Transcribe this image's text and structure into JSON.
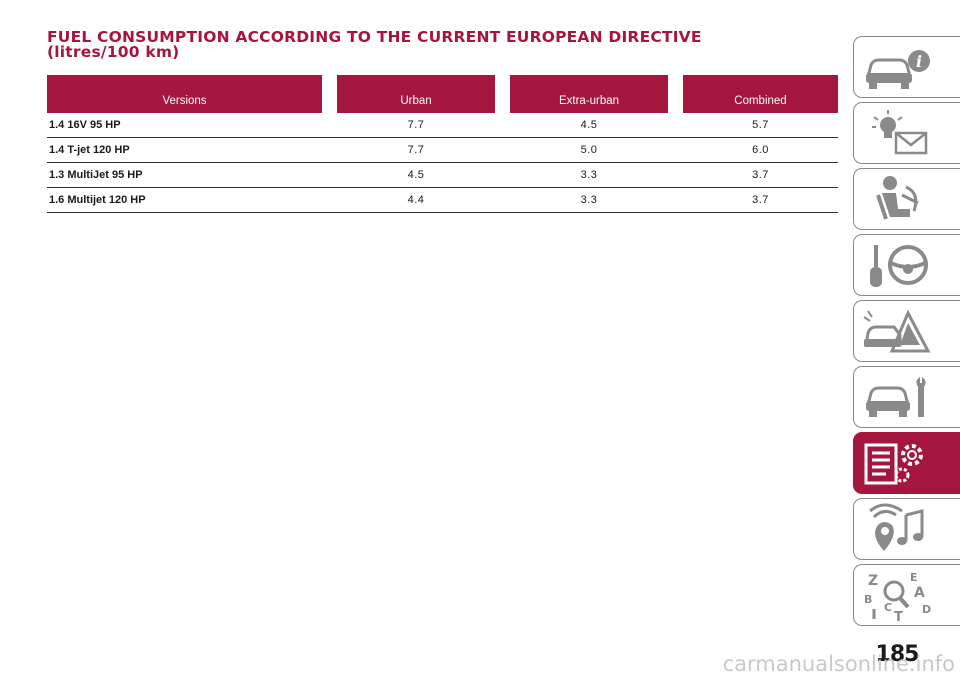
{
  "title": {
    "line1": "FUEL CONSUMPTION ACCORDING TO THE CURRENT EUROPEAN DIRECTIVE",
    "line2": "(litres/100 km)"
  },
  "table": {
    "headers": [
      "Versions",
      "Urban",
      "Extra-urban",
      "Combined"
    ],
    "rows": [
      {
        "version": "1.4 16V 95 HP",
        "urban": "7.7",
        "extra_urban": "4.5",
        "combined": "5.7"
      },
      {
        "version": "1.4 T-jet 120 HP",
        "urban": "7.7",
        "extra_urban": "5.0",
        "combined": "6.0"
      },
      {
        "version": "1.3 MultiJet 95 HP",
        "urban": "4.5",
        "extra_urban": "3.3",
        "combined": "3.7"
      },
      {
        "version": "1.6 Multijet 120 HP",
        "urban": "4.4",
        "extra_urban": "3.3",
        "combined": "3.7"
      }
    ]
  },
  "sidebar": {
    "tabs": [
      {
        "icon": "car-info-icon",
        "active": false
      },
      {
        "icon": "warning-lights-message-icon",
        "active": false
      },
      {
        "icon": "seat-airbag-icon",
        "active": false
      },
      {
        "icon": "key-steering-wheel-icon",
        "active": false
      },
      {
        "icon": "emergency-breakdown-icon",
        "active": false
      },
      {
        "icon": "car-maintenance-icon",
        "active": false
      },
      {
        "icon": "technical-data-icon",
        "active": true
      },
      {
        "icon": "multimedia-icon",
        "active": false
      },
      {
        "icon": "alphabetical-index-icon",
        "active": false
      }
    ],
    "index_letters": [
      "Z",
      "E",
      "A",
      "B",
      "C",
      "D",
      "T"
    ],
    "accent_color": "#a5163f"
  },
  "page_number": "185",
  "watermark": "carmanualsonline.info"
}
